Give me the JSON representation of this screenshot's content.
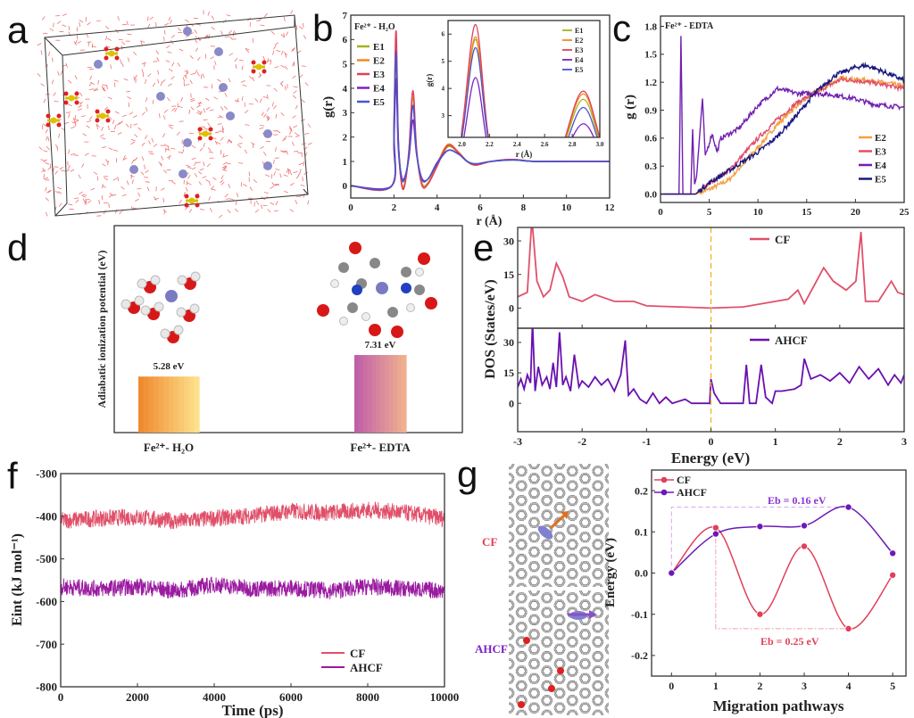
{
  "panel_letters": [
    "a",
    "b",
    "c",
    "d",
    "e",
    "f",
    "g"
  ],
  "chart_data": [
    {
      "id": "b",
      "type": "line",
      "annotation": "Fe²⁺ - H₂O",
      "xlabel": "r (Å)",
      "ylabel": "g(r)",
      "xlim": [
        0,
        12
      ],
      "ylim": [
        -0.5,
        7
      ],
      "xticks": [
        0,
        2,
        4,
        6,
        8,
        10,
        12
      ],
      "yticks": [
        0,
        1,
        2,
        3,
        4,
        5,
        6,
        7
      ],
      "legend": "top-left",
      "x": [
        0,
        1.9,
        2.0,
        2.1,
        2.2,
        2.35,
        2.5,
        2.7,
        2.88,
        3.05,
        3.3,
        3.6,
        4.0,
        4.5,
        5.0,
        5.4,
        5.8,
        6.5,
        7.5,
        8.5,
        10,
        12
      ],
      "series": [
        {
          "name": "E1",
          "color": "#a7b21e",
          "values": [
            0,
            0,
            2.3,
            5.8,
            1.9,
            0.15,
            0.1,
            1.4,
            3.6,
            1.4,
            0.1,
            0.15,
            0.85,
            1.6,
            1.35,
            1.0,
            0.85,
            1.0,
            1.08,
            1.0,
            1.0,
            1.0
          ]
        },
        {
          "name": "E2",
          "color": "#f28a1e",
          "values": [
            0,
            0,
            2.3,
            5.9,
            1.9,
            0.12,
            0.05,
            1.45,
            3.8,
            1.45,
            0.05,
            0.12,
            0.9,
            1.7,
            1.38,
            1.0,
            0.85,
            1.0,
            1.08,
            1.0,
            1.0,
            1.0
          ]
        },
        {
          "name": "E3",
          "color": "#e0405a",
          "values": [
            0,
            0,
            2.5,
            6.35,
            2.0,
            0.1,
            0.02,
            1.5,
            3.9,
            1.5,
            0.02,
            0.1,
            0.8,
            1.65,
            1.35,
            1.0,
            0.85,
            1.0,
            1.08,
            1.0,
            1.0,
            1.0
          ]
        },
        {
          "name": "E4",
          "color": "#7a22c4",
          "values": [
            0,
            0,
            1.8,
            4.4,
            1.6,
            0.4,
            0.35,
            1.2,
            2.7,
            1.3,
            0.3,
            0.3,
            0.95,
            1.45,
            1.3,
            1.0,
            0.9,
            1.0,
            1.06,
            1.0,
            1.0,
            1.0
          ]
        },
        {
          "name": "E5",
          "color": "#4a55cc",
          "values": [
            0,
            0,
            2.2,
            5.5,
            1.9,
            0.35,
            0.3,
            1.3,
            3.3,
            1.35,
            0.25,
            0.3,
            0.9,
            1.45,
            1.3,
            1.0,
            0.9,
            1.0,
            1.06,
            1.0,
            1.0,
            1.0
          ]
        }
      ],
      "inset": {
        "xlabel": "r (Å)",
        "ylabel": "g(r)",
        "xlim": [
          1.9,
          3.0
        ],
        "ylim": [
          2.2,
          6.5
        ],
        "xticks": [
          2.0,
          2.2,
          2.4,
          2.6,
          2.8,
          3.0
        ],
        "yticks": [
          3,
          4,
          5,
          6
        ],
        "legend": "top-right"
      }
    },
    {
      "id": "c",
      "type": "line",
      "annotation": "Fe²⁺ - EDTA",
      "xlabel": "",
      "ylabel": "g (r)",
      "xlim": [
        0,
        25
      ],
      "ylim": [
        -0.09,
        1.91
      ],
      "xticks": [
        0,
        5,
        10,
        15,
        20,
        25
      ],
      "yticks": [
        0.0,
        0.3,
        0.6,
        0.9,
        1.2,
        1.5,
        1.8
      ],
      "legend": "bottom-right",
      "series": [
        {
          "name": "E2",
          "color": "#f5a040",
          "x": [
            0,
            3.6,
            5,
            7,
            10,
            12,
            14,
            16,
            18.5,
            20,
            22,
            25
          ],
          "values": [
            0,
            0,
            0.05,
            0.15,
            0.5,
            0.75,
            0.95,
            1.1,
            1.24,
            1.23,
            1.21,
            1.16
          ]
        },
        {
          "name": "E3",
          "color": "#e0506a",
          "x": [
            0,
            3.6,
            5,
            7,
            10,
            12,
            14,
            16,
            18.5,
            20,
            22,
            25
          ],
          "values": [
            0,
            0,
            0.12,
            0.25,
            0.6,
            0.8,
            0.98,
            1.1,
            1.23,
            1.22,
            1.19,
            1.13
          ]
        },
        {
          "name": "E4",
          "color": "#7020b0",
          "x": [
            0,
            1.9,
            2.1,
            2.3,
            2.6,
            3.1,
            3.3,
            3.5,
            3.7,
            4.0,
            4.3,
            4.6,
            5.0,
            5.3,
            5.8,
            6.2,
            8,
            10,
            12,
            14,
            16,
            18,
            20,
            22,
            25
          ],
          "values": [
            0,
            0,
            1.7,
            0,
            0,
            0,
            0.68,
            0.1,
            0.2,
            0.6,
            1.02,
            0.4,
            0.55,
            0.65,
            0.45,
            0.6,
            0.7,
            0.95,
            1.13,
            1.08,
            1.08,
            1.06,
            1.02,
            0.96,
            0.93
          ]
        },
        {
          "name": "E5",
          "color": "#1a1a80",
          "x": [
            0,
            3.6,
            5,
            7,
            10,
            12,
            14,
            16,
            18,
            20,
            21,
            22,
            25
          ],
          "values": [
            0,
            0,
            0.12,
            0.25,
            0.45,
            0.62,
            0.85,
            1.1,
            1.28,
            1.36,
            1.38,
            1.35,
            1.22
          ]
        }
      ]
    },
    {
      "id": "d",
      "type": "bar",
      "ylabel": "Adiabatic ionization potential (eV)",
      "categories": [
        "Fe²⁺- H₂O",
        "Fe²⁺- EDTA"
      ],
      "values": [
        5.28,
        7.31
      ],
      "data_labels": [
        "5.28 eV",
        "7.31 eV"
      ],
      "ylim": [
        0,
        19.5
      ],
      "colors": [
        [
          "#f08a30",
          "#fde08a"
        ],
        [
          "#c060a8",
          "#f0b090"
        ]
      ]
    },
    {
      "id": "e",
      "type": "line",
      "xlabel": "Energy (eV)",
      "ylabel": "DOS (States/eV)",
      "xlim": [
        -3,
        3
      ],
      "xticks": [
        -3,
        -2,
        -1,
        0,
        1,
        2,
        3
      ],
      "fermi_line": {
        "x": 0,
        "color": "#f2b21e",
        "style": "dashed"
      },
      "panels": [
        {
          "name": "CF",
          "color": "#e0506a",
          "ylim": [
            -9,
            36
          ],
          "yticks": [
            0,
            15,
            30
          ],
          "points": [
            [
              -3,
              5
            ],
            [
              -2.85,
              7
            ],
            [
              -2.78,
              40
            ],
            [
              -2.7,
              12
            ],
            [
              -2.6,
              5
            ],
            [
              -2.5,
              8
            ],
            [
              -2.4,
              20
            ],
            [
              -2.3,
              14
            ],
            [
              -2.2,
              5
            ],
            [
              -2.0,
              3
            ],
            [
              -1.8,
              6
            ],
            [
              -1.5,
              3
            ],
            [
              -1.2,
              3
            ],
            [
              -1.0,
              1
            ],
            [
              -0.5,
              0.5
            ],
            [
              0,
              0
            ],
            [
              0.5,
              0.5
            ],
            [
              1.0,
              3
            ],
            [
              1.2,
              4
            ],
            [
              1.35,
              8
            ],
            [
              1.45,
              2
            ],
            [
              1.6,
              10
            ],
            [
              1.75,
              18
            ],
            [
              1.9,
              12
            ],
            [
              2.1,
              8
            ],
            [
              2.25,
              12
            ],
            [
              2.33,
              34
            ],
            [
              2.4,
              3
            ],
            [
              2.6,
              3
            ],
            [
              2.8,
              12
            ],
            [
              2.9,
              7
            ],
            [
              3,
              6
            ]
          ]
        },
        {
          "name": "AHCF",
          "color": "#6a10b0",
          "ylim": [
            -14,
            37
          ],
          "yticks": [
            0,
            15,
            30
          ],
          "points": [
            [
              -3,
              8
            ],
            [
              -2.95,
              12
            ],
            [
              -2.9,
              7
            ],
            [
              -2.85,
              14
            ],
            [
              -2.8,
              10
            ],
            [
              -2.77,
              40
            ],
            [
              -2.73,
              6
            ],
            [
              -2.68,
              18
            ],
            [
              -2.62,
              9
            ],
            [
              -2.55,
              13
            ],
            [
              -2.5,
              7
            ],
            [
              -2.45,
              20
            ],
            [
              -2.4,
              8
            ],
            [
              -2.35,
              35
            ],
            [
              -2.3,
              9
            ],
            [
              -2.25,
              13
            ],
            [
              -2.18,
              6
            ],
            [
              -2.12,
              24
            ],
            [
              -2.05,
              8
            ],
            [
              -2.0,
              11
            ],
            [
              -1.9,
              8
            ],
            [
              -1.8,
              13
            ],
            [
              -1.7,
              9
            ],
            [
              -1.6,
              12
            ],
            [
              -1.5,
              6
            ],
            [
              -1.4,
              14
            ],
            [
              -1.33,
              31
            ],
            [
              -1.28,
              4
            ],
            [
              -1.2,
              7
            ],
            [
              -1.1,
              2
            ],
            [
              -1.0,
              0
            ],
            [
              -0.9,
              5
            ],
            [
              -0.8,
              0
            ],
            [
              -0.7,
              3
            ],
            [
              -0.6,
              0
            ],
            [
              -0.4,
              2
            ],
            [
              -0.3,
              0
            ],
            [
              -0.02,
              0
            ],
            [
              0,
              12
            ],
            [
              0.05,
              5
            ],
            [
              0.15,
              0
            ],
            [
              0.5,
              0
            ],
            [
              0.55,
              19
            ],
            [
              0.6,
              0
            ],
            [
              0.7,
              0
            ],
            [
              0.78,
              19
            ],
            [
              0.85,
              3
            ],
            [
              0.95,
              0
            ],
            [
              1.0,
              6
            ],
            [
              1.1,
              6
            ],
            [
              1.3,
              7
            ],
            [
              1.4,
              9
            ],
            [
              1.45,
              22
            ],
            [
              1.55,
              12
            ],
            [
              1.7,
              14
            ],
            [
              1.85,
              11
            ],
            [
              2.0,
              15
            ],
            [
              2.15,
              10
            ],
            [
              2.3,
              18
            ],
            [
              2.45,
              12
            ],
            [
              2.6,
              17
            ],
            [
              2.75,
              9
            ],
            [
              2.85,
              14
            ],
            [
              2.95,
              10
            ],
            [
              3,
              14
            ]
          ]
        }
      ]
    },
    {
      "id": "f",
      "type": "line",
      "xlabel": "Time (ps)",
      "ylabel": "Eint (kJ mol⁻¹)",
      "xlim": [
        0,
        10000
      ],
      "ylim": [
        -800,
        -300
      ],
      "xticks": [
        0,
        2000,
        4000,
        6000,
        8000,
        10000
      ],
      "yticks": [
        -800,
        -700,
        -600,
        -500,
        -400,
        -300
      ],
      "legend": "bottom-right",
      "x": [
        0,
        1000,
        2000,
        3000,
        4000,
        5000,
        6000,
        7000,
        8000,
        9000,
        10000
      ],
      "series": [
        {
          "name": "CF",
          "color": "#e0506a",
          "values": [
            -410,
            -405,
            -402,
            -412,
            -405,
            -398,
            -388,
            -392,
            -385,
            -392,
            -405
          ]
        },
        {
          "name": "AHCF",
          "color": "#9a1aa0",
          "values": [
            -565,
            -570,
            -565,
            -575,
            -560,
            -570,
            -568,
            -575,
            -565,
            -570,
            -575
          ]
        }
      ]
    },
    {
      "id": "g",
      "type": "line",
      "xlabel": "Migration pathways",
      "ylabel": "Energy (eV)",
      "xlim": [
        -0.45,
        5.3
      ],
      "ylim": [
        -0.25,
        0.25
      ],
      "xticks": [
        0,
        1,
        2,
        3,
        4,
        5
      ],
      "yticks": [
        -0.2,
        -0.1,
        0.0,
        0.1,
        0.2
      ],
      "legend": "top-left",
      "x": [
        0,
        1,
        2,
        3,
        4,
        5
      ],
      "series": [
        {
          "name": "CF",
          "color": "#e0405a",
          "values": [
            0,
            0.11,
            -0.1,
            0.065,
            -0.135,
            -0.005
          ]
        },
        {
          "name": "AHCF",
          "color": "#6a1ab8",
          "values": [
            0,
            0.095,
            0.113,
            0.115,
            0.16,
            0.048
          ]
        }
      ],
      "annotations": [
        {
          "text": "Eb = 0.16 eV",
          "color": "#8a30d0"
        },
        {
          "text": "Eb = 0.25 eV",
          "color": "#e0405a"
        }
      ],
      "structure_labels": [
        {
          "text": "CF",
          "color": "#e0405a"
        },
        {
          "text": "AHCF",
          "color": "#7a22c4"
        }
      ]
    }
  ]
}
